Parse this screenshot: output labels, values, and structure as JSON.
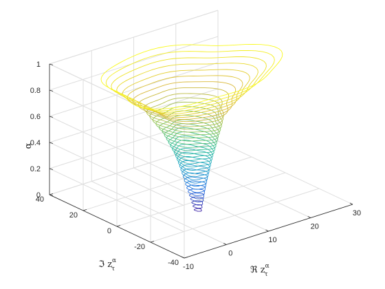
{
  "chart_data": {
    "type": "contour3",
    "title": "",
    "xlabel": "ℜ z",
    "xlabel_sup": "α",
    "xlabel_sub": "τ",
    "ylabel": "ℑ z",
    "ylabel_sup": "α",
    "ylabel_sub": "τ",
    "zlabel": "α",
    "xlim": [
      -10,
      30
    ],
    "ylim": [
      -40,
      40
    ],
    "zlim": [
      0,
      1
    ],
    "xticks": [
      -10,
      0,
      10,
      20,
      30
    ],
    "yticks": [
      -40,
      -20,
      0,
      20,
      40
    ],
    "zticks": [
      0,
      0.2,
      0.4,
      0.6,
      0.8,
      1
    ],
    "xtick_labels": [
      "-10",
      "0",
      "10",
      "20",
      "30"
    ],
    "ytick_labels": [
      "-40",
      "-20",
      "0",
      "20",
      "40"
    ],
    "ztick_labels": [
      "0",
      "0.2",
      "0.4",
      "0.6",
      "0.8",
      "1"
    ],
    "grid": true,
    "colormap": "parula",
    "colormap_colors": [
      "#3e26a8",
      "#1f6fe0",
      "#1fa3c9",
      "#2dbd9b",
      "#86c55a",
      "#d9b838",
      "#f9f91c"
    ],
    "level_range": [
      0.05,
      0.95
    ],
    "level_step": 0.025,
    "contour_levels": [
      {
        "alpha": 0.05,
        "center_re": 4.5,
        "center_im": -12,
        "radius_re": 0.6,
        "radius_im": 1.5
      },
      {
        "alpha": 0.15,
        "center_re": 4.7,
        "center_im": -11,
        "radius_re": 1.2,
        "radius_im": 3
      },
      {
        "alpha": 0.3,
        "center_re": 5,
        "center_im": -9,
        "radius_re": 2.2,
        "radius_im": 5.5
      },
      {
        "alpha": 0.45,
        "center_re": 5.2,
        "center_im": -7,
        "radius_re": 3.2,
        "radius_im": 8
      },
      {
        "alpha": 0.6,
        "center_re": 5.5,
        "center_im": -5,
        "radius_re": 4.5,
        "radius_im": 11
      },
      {
        "alpha": 0.75,
        "center_re": 6,
        "center_im": -2,
        "radius_re": 7,
        "radius_im": 15
      },
      {
        "alpha": 0.85,
        "center_re": 7.5,
        "center_im": 1,
        "radius_re": 12,
        "radius_im": 20
      },
      {
        "alpha": 0.95,
        "center_re": 9,
        "center_im": 4,
        "radius_re": 18,
        "radius_im": 26
      }
    ]
  }
}
